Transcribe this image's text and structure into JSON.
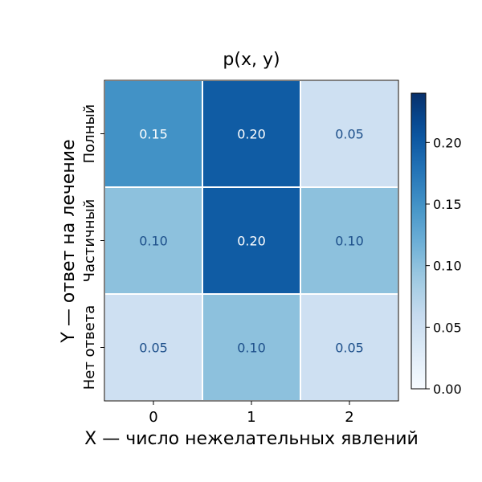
{
  "chart_data": {
    "type": "heatmap",
    "title": "p(x, y)",
    "xlabel": "X — число нежелательных явлений",
    "ylabel": "Y — ответ на лечение",
    "x_categories": [
      "0",
      "1",
      "2"
    ],
    "y_categories": [
      "Полный",
      "Частичный",
      "Нет ответа"
    ],
    "values": [
      [
        0.15,
        0.2,
        0.05
      ],
      [
        0.1,
        0.2,
        0.1
      ],
      [
        0.05,
        0.1,
        0.05
      ]
    ],
    "cell_labels": [
      [
        "0.15",
        "0.20",
        "0.05"
      ],
      [
        "0.10",
        "0.20",
        "0.10"
      ],
      [
        "0.05",
        "0.10",
        "0.05"
      ]
    ],
    "colormap": "Blues",
    "color_range": [
      0,
      0.24
    ],
    "colorbar_ticks": [
      "0.00",
      "0.05",
      "0.10",
      "0.15",
      "0.20"
    ],
    "label_color": "#1d4f8a",
    "gridline_color": "#ffffff",
    "border_color": "#000000"
  }
}
